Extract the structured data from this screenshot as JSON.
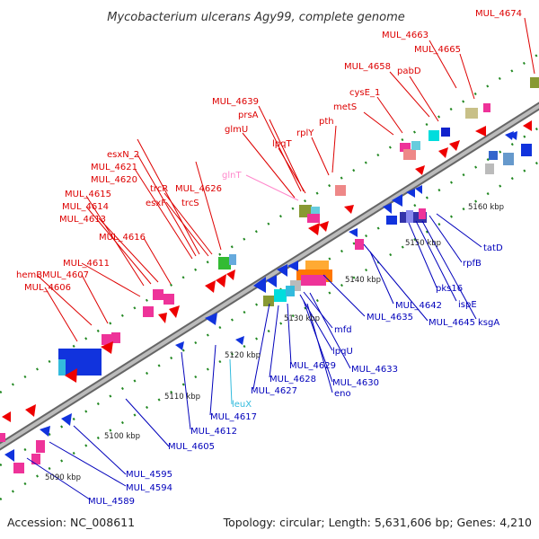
{
  "title": "Mycobacterium ulcerans Agy99, complete genome",
  "footer": {
    "accession": "Accession: NC_008611",
    "summary": "Topology: circular; Length: 5,631,606 bp; Genes: 4,210"
  },
  "colors": {
    "forward_label": "#dd0000",
    "reverse_label": "#0000bb",
    "pink_label": "#ff88cc",
    "cyan_label": "#33bbdd",
    "backbone": "#888888",
    "tick": "#228822"
  },
  "kbp_marks": [
    "5090 kbp",
    "5100 kbp",
    "5110 kbp",
    "5120 kbp",
    "5130 kbp",
    "5140 kbp",
    "5150 kbp",
    "5160 kbp"
  ],
  "top_labels": [
    "MUL_4674",
    "MUL_4663",
    "MUL_4665",
    "MUL_4658",
    "pabD",
    "cysE_1",
    "metS",
    "pth",
    "rplY",
    "MUL_4639",
    "prsA",
    "glmU",
    "lpqT",
    "glnT",
    "MUL_4626",
    "trcR",
    "trcS",
    "esxN_2",
    "MUL_4621",
    "MUL_4620",
    "esxF",
    "MUL_4615",
    "MUL_4614",
    "MUL_4613",
    "MUL_4616",
    "MUL_4611",
    "hemB",
    "MUL_4607",
    "MUL_4606"
  ],
  "bottom_labels": [
    "tatD",
    "rpfB",
    "pks16",
    "ispE",
    "ksgA",
    "MUL_4642",
    "MUL_4645",
    "MUL_4635",
    "mfd",
    "lpqU",
    "MUL_4633",
    "MUL_4629",
    "MUL_4630",
    "MUL_4628",
    "eno",
    "MUL_4627",
    "leuX",
    "MUL_4617",
    "MUL_4612",
    "MUL_4605",
    "MUL_4595",
    "MUL_4594",
    "MUL_4589"
  ]
}
